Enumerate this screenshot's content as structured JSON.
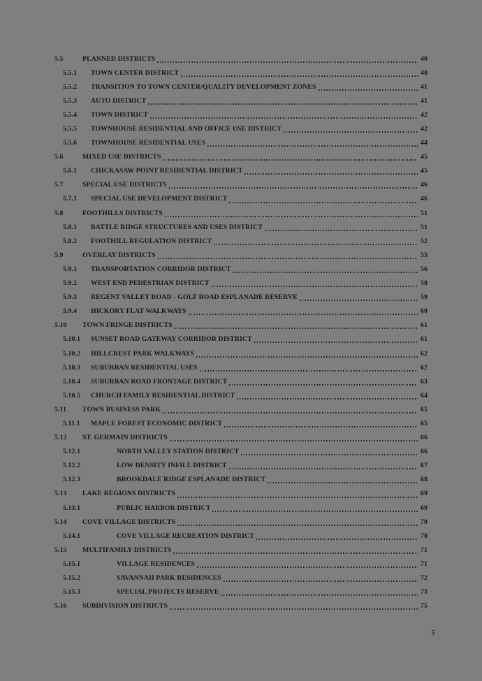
{
  "colors": {
    "background": "#7f7f7f",
    "text": "#161616"
  },
  "footer": {
    "page_number": "5"
  },
  "toc": {
    "entries": [
      {
        "num": "5.5",
        "title": "Planned Districts",
        "page": "40",
        "level": 1
      },
      {
        "num": "5.5.1",
        "title": "Town Center District",
        "page": "40",
        "level": 2
      },
      {
        "num": "5.5.2",
        "title": "Transition to Town Center/Quality Development Zones",
        "page": "41",
        "level": 2
      },
      {
        "num": "5.5.3",
        "title": "Auto District",
        "page": "41",
        "level": 2
      },
      {
        "num": "5.5.4",
        "title": "Town District",
        "page": "42",
        "level": 2
      },
      {
        "num": "5.5.5",
        "title": "Townhouse Residential and Office Use District",
        "page": "42",
        "level": 2
      },
      {
        "num": "5.5.6",
        "title": "Townhouse Residential Uses",
        "page": "44",
        "level": 2
      },
      {
        "num": "5.6",
        "title": "Mixed Use Districts",
        "page": "45",
        "level": 1
      },
      {
        "num": "5.6.1",
        "title": "Chickasaw Point Residential District",
        "page": "45",
        "level": 2
      },
      {
        "num": "5.7",
        "title": "Special Use Districts",
        "page": "46",
        "level": 1
      },
      {
        "num": "5.7.1",
        "title": "Special Use Development District",
        "page": "46",
        "level": 2
      },
      {
        "num": "5.8",
        "title": "Foothills Districts",
        "page": "51",
        "level": 1
      },
      {
        "num": "5.8.1",
        "title": "Battle Ridge Structures and Uses District",
        "page": "51",
        "level": 2
      },
      {
        "num": "5.8.2",
        "title": "Foothill Regulation District",
        "page": "52",
        "level": 2
      },
      {
        "num": "5.9",
        "title": "Overlay Districts",
        "page": "53",
        "level": 1
      },
      {
        "num": "5.9.1",
        "title": "Transportation Corridor District",
        "page": "56",
        "level": 2
      },
      {
        "num": "5.9.2",
        "title": "West End Pedestrian District",
        "page": "58",
        "level": 2
      },
      {
        "num": "5.9.3",
        "title": "Regent Valley Road - Golf Road Esplanade Reserve",
        "page": "59",
        "level": 2
      },
      {
        "num": "5.9.4",
        "title": "Hickory Flat Walkways",
        "page": "60",
        "level": 2
      },
      {
        "num": "5.10",
        "title": "Town Fringe Districts",
        "page": "61",
        "level": 1
      },
      {
        "num": "5.10.1",
        "title": "Sunset Road Gateway Corridor District",
        "page": "61",
        "level": 2
      },
      {
        "num": "5.10.2",
        "title": "Hillcrest Park Walkways",
        "page": "62",
        "level": 2
      },
      {
        "num": "5.10.3",
        "title": "Suburban Residential Uses",
        "page": "62",
        "level": 2
      },
      {
        "num": "5.10.4",
        "title": "Suburban Road Frontage District",
        "page": "63",
        "level": 2
      },
      {
        "num": "5.10.5",
        "title": "Church Family Residential District",
        "page": "64",
        "level": 2
      },
      {
        "num": "5.11",
        "title": "Town Business Park",
        "page": "65",
        "level": 1
      },
      {
        "num": "5.11.1",
        "title": "Maple Forest Economic District",
        "page": "65",
        "level": 2
      },
      {
        "num": "5.12",
        "title": "St. Germain Districts",
        "page": "66",
        "level": 1
      },
      {
        "num": "5.12.1",
        "title": "North Valley Station District",
        "page": "66",
        "level": 3
      },
      {
        "num": "5.12.2",
        "title": "Low Density Infill District",
        "page": "67",
        "level": 3
      },
      {
        "num": "5.12.3",
        "title": "Brookdale Ridge Esplanade District",
        "page": "68",
        "level": 3
      },
      {
        "num": "5.13",
        "title": "Lake Regions Districts",
        "page": "69",
        "level": 1
      },
      {
        "num": "5.13.1",
        "title": "Public Harbor District",
        "page": "69",
        "level": 3
      },
      {
        "num": "5.14",
        "title": "Cove Village Districts",
        "page": "70",
        "level": 1
      },
      {
        "num": "5.14.1",
        "title": "Cove Village Recreation District",
        "page": "70",
        "level": 3
      },
      {
        "num": "5.15",
        "title": "Multifamily Districts",
        "page": "71",
        "level": 1
      },
      {
        "num": "5.15.1",
        "title": "Village Residences",
        "page": "71",
        "level": 3
      },
      {
        "num": "5.15.2",
        "title": "Savannah Park Residences",
        "page": "72",
        "level": 3
      },
      {
        "num": "5.15.3",
        "title": "Special Projects Reserve",
        "page": "73",
        "level": 3
      },
      {
        "num": "5.16",
        "title": "Subdivision Districts",
        "page": "75",
        "level": 1
      }
    ]
  }
}
